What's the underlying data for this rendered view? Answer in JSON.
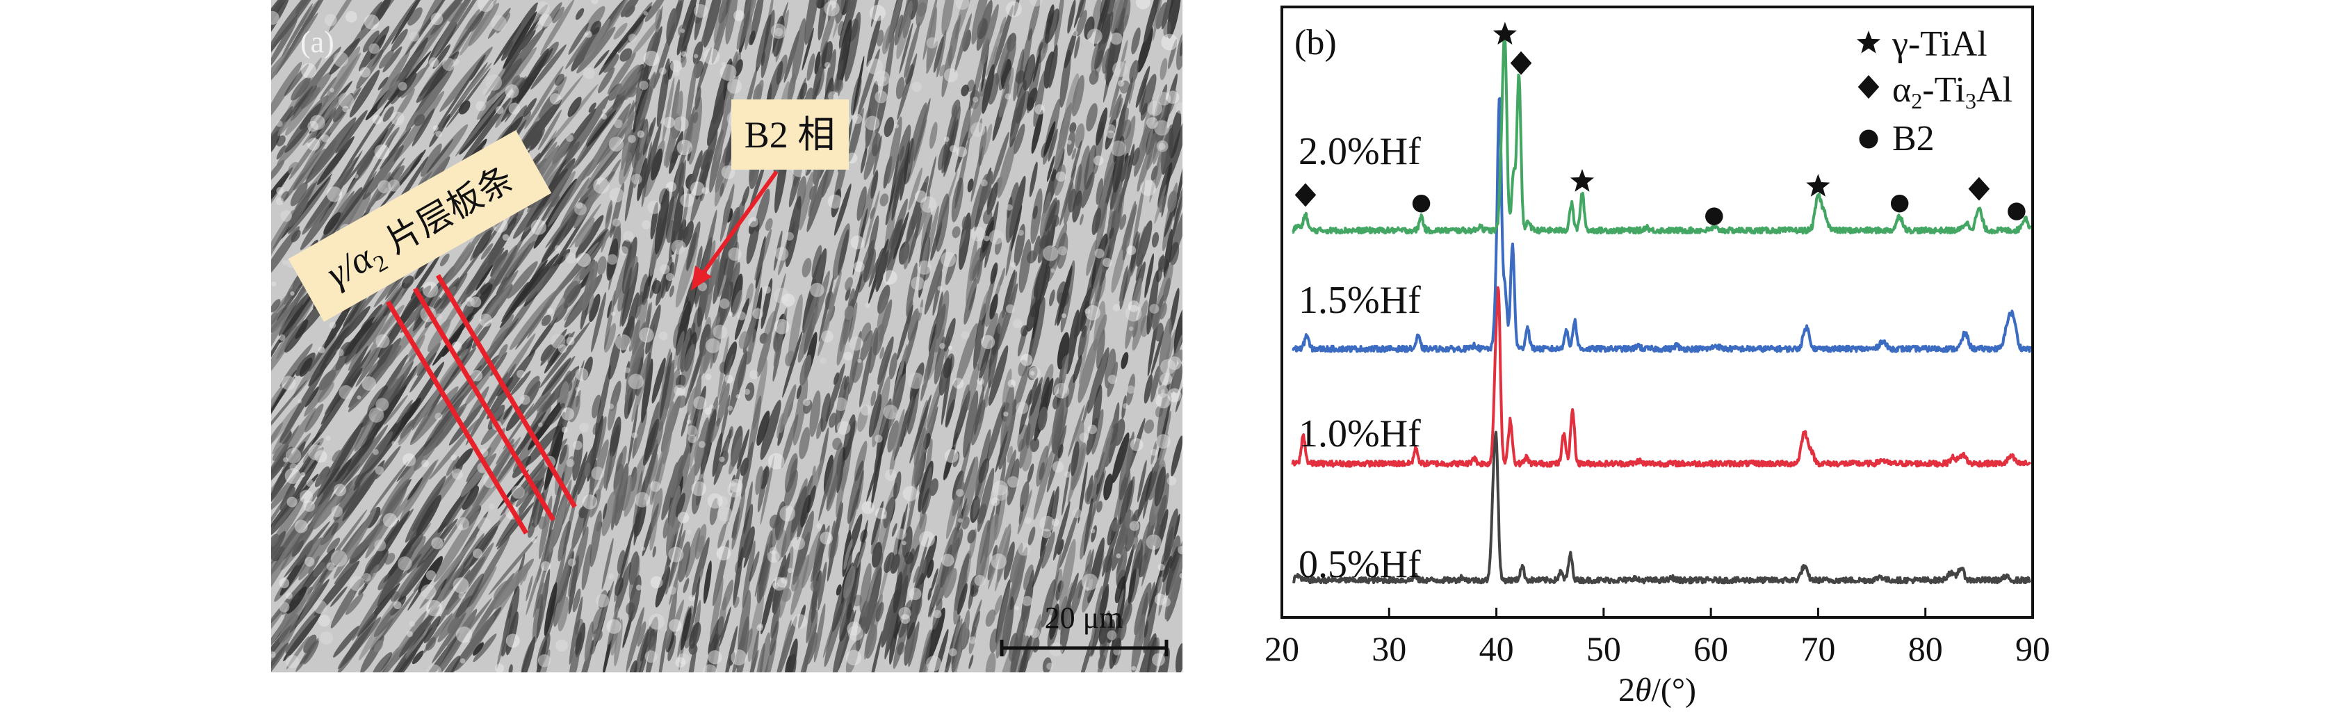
{
  "panel_a": {
    "label": "(a)",
    "callout_b2": "B2 相",
    "callout_lamella_prefix": "γ/α",
    "callout_lamella_sub": "2",
    "callout_lamella_suffix": " 片层板条",
    "scale_bar": "20 μm",
    "colors": {
      "callout_bg": "#fbe9c0",
      "arrow": "#e8202a",
      "lines": "#e8202a"
    }
  },
  "chart_data": {
    "type": "line",
    "panel_label": "(b)",
    "xlabel_prefix": "2",
    "xlabel_theta": "θ",
    "xlabel_suffix": "/(°)",
    "ylabel": "",
    "xlim": [
      20,
      90
    ],
    "ylim": [
      0,
      100
    ],
    "xticks": [
      20,
      30,
      40,
      50,
      60,
      70,
      80,
      90
    ],
    "grid": false,
    "y_ticks_shown": false,
    "legend_placement": "top-right",
    "legend": [
      {
        "symbol": "star",
        "label_main": "γ-TiAl"
      },
      {
        "symbol": "diamond",
        "label_main": "α",
        "sub1": "2",
        "mid": "-Ti",
        "sub2": "3",
        "end": "Al"
      },
      {
        "symbol": "circle",
        "label_main": "B2"
      }
    ],
    "series": [
      {
        "name": "0.5%Hf",
        "color": "#444444",
        "baseline": 6.1,
        "peaks": [
          [
            21.5,
            0.8
          ],
          [
            32.4,
            0.7
          ],
          [
            36.8,
            0.5
          ],
          [
            39.7,
            12
          ],
          [
            40.0,
            20.3
          ],
          [
            42.4,
            2.3
          ],
          [
            46.0,
            1.3
          ],
          [
            46.9,
            4.2
          ],
          [
            52.8,
            0.4
          ],
          [
            56.4,
            0.4
          ],
          [
            68.7,
            2.2
          ],
          [
            75.8,
            0.6
          ],
          [
            82.3,
            1.2
          ],
          [
            83.3,
            2.0
          ],
          [
            87.5,
            0.5
          ]
        ]
      },
      {
        "name": "1.0%Hf",
        "color": "#e2303f",
        "baseline": 25.2,
        "peaks": [
          [
            22.0,
            4.6
          ],
          [
            32.5,
            2.5
          ],
          [
            37.9,
            1.0
          ],
          [
            39.9,
            12
          ],
          [
            40.2,
            25.3
          ],
          [
            41.3,
            7.2
          ],
          [
            42.8,
            1.0
          ],
          [
            46.3,
            4.9
          ],
          [
            47.1,
            8.8
          ],
          [
            53.3,
            0.5
          ],
          [
            68.7,
            4.9
          ],
          [
            69.3,
            2.0
          ],
          [
            76.0,
            0.6
          ],
          [
            82.6,
            1.0
          ],
          [
            83.5,
            1.5
          ],
          [
            88.0,
            1.2
          ]
        ]
      },
      {
        "name": "1.5%Hf",
        "color": "#3b6cc2",
        "baseline": 44.0,
        "peaks": [
          [
            22.3,
            2.3
          ],
          [
            32.7,
            2.0
          ],
          [
            38.0,
            0.6
          ],
          [
            40.0,
            8
          ],
          [
            40.3,
            38.9
          ],
          [
            40.8,
            10
          ],
          [
            41.5,
            17
          ],
          [
            42.9,
            3.5
          ],
          [
            46.5,
            3.0
          ],
          [
            47.3,
            4.6
          ],
          [
            53.2,
            0.6
          ],
          [
            56.8,
            0.6
          ],
          [
            60.5,
            0.5
          ],
          [
            68.9,
            3.5
          ],
          [
            76.0,
            1.3
          ],
          [
            83.7,
            2.5
          ],
          [
            87.7,
            4.0
          ],
          [
            88.2,
            4.6
          ]
        ]
      },
      {
        "name": "2.0%Hf",
        "color": "#43a763",
        "baseline": 63.4,
        "peaks": [
          [
            21.5,
            0.8
          ],
          [
            22.2,
            2.7
          ],
          [
            33.0,
            2.3
          ],
          [
            38.5,
            0.8
          ],
          [
            40.5,
            11
          ],
          [
            40.8,
            29.5
          ],
          [
            41.6,
            9
          ],
          [
            42.1,
            25.6
          ],
          [
            43.0,
            1.5
          ],
          [
            47.0,
            4.4
          ],
          [
            48.0,
            6.0
          ],
          [
            54.0,
            0.6
          ],
          [
            60.3,
            0.4
          ],
          [
            70.0,
            5.4
          ],
          [
            70.6,
            2.5
          ],
          [
            77.6,
            2.3
          ],
          [
            83.8,
            1.2
          ],
          [
            85.0,
            3.5
          ],
          [
            89.3,
            2.0
          ]
        ]
      }
    ],
    "phase_markers": [
      {
        "symbol": "star",
        "x": 40.8,
        "y": 95.5
      },
      {
        "symbol": "diamond",
        "x": 42.3,
        "y": 90.8
      },
      {
        "symbol": "diamond",
        "x": 22.2,
        "y": 69.2
      },
      {
        "symbol": "circle",
        "x": 33.0,
        "y": 67.8
      },
      {
        "symbol": "star",
        "x": 48.0,
        "y": 71.4
      },
      {
        "symbol": "circle",
        "x": 60.3,
        "y": 65.7
      },
      {
        "symbol": "star",
        "x": 70.0,
        "y": 70.6
      },
      {
        "symbol": "circle",
        "x": 77.6,
        "y": 67.8
      },
      {
        "symbol": "diamond",
        "x": 85.0,
        "y": 70.2
      },
      {
        "symbol": "circle",
        "x": 88.5,
        "y": 66.5
      }
    ]
  }
}
